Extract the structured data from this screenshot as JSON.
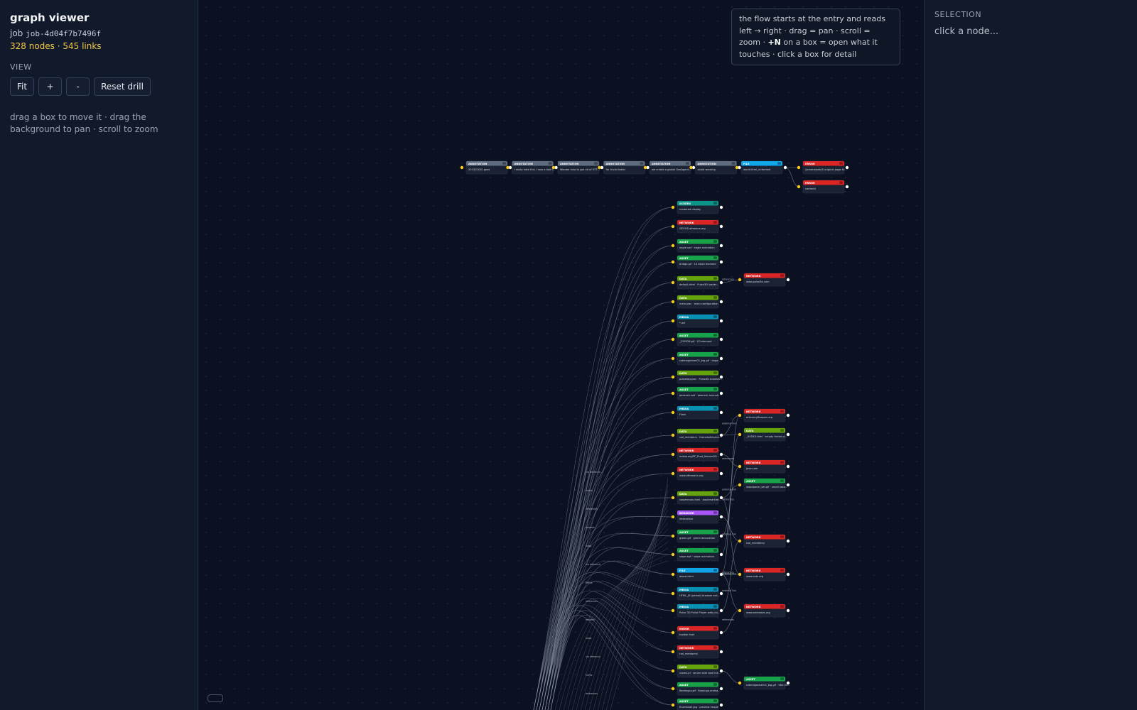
{
  "sidebar": {
    "title": "graph viewer",
    "job_prefix": "job",
    "job_id": "job-4d04f7b7496f",
    "stats": "328 nodes · 545 links",
    "view_label": "VIEW",
    "buttons": {
      "fit": "Fit",
      "zoom_in": "+",
      "zoom_out": "-",
      "reset": "Reset drill"
    },
    "hint": "drag a box to move it · drag the background to pan · scroll to zoom"
  },
  "canvas": {
    "info_text_1": "the flow starts at the entry and reads left → right · drag = pan · scroll = zoom · ",
    "info_bold": "+N",
    "info_text_2": " on a box = open what it touches · click a box for detail"
  },
  "panel": {
    "title": "SELECTION",
    "empty": "click a node..."
  },
  "colors": {
    "annotation": "#5f6b7f",
    "file": "#0ea5e9",
    "error": "#dc2626",
    "network": "#dc2626",
    "screen": "#0d9488",
    "asset": "#16a34a",
    "data": "#65a30d",
    "media": "#0891b2",
    "behavior": "#a855f7",
    "port_in": "#facc15",
    "port_out": "#ffffff",
    "edge": "#8a95a8"
  },
  "graph": {
    "top_chain": [
      {
        "kind": "annotation",
        "title": "ANNOTATION",
        "label": "2013/03/20 goes"
      },
      {
        "kind": "annotation",
        "title": "ANNOTATION",
        "label": "I really hate this. I was a bad t..."
      },
      {
        "kind": "annotation",
        "title": "ANNOTATION",
        "label": "Wonder how to get rid of HTT..."
      },
      {
        "kind": "annotation",
        "title": "ANNOTATION",
        "label": "for trivial tests!"
      },
      {
        "kind": "annotation",
        "title": "ANNOTATION",
        "label": "we create a global GeoAgent..."
      },
      {
        "kind": "annotation",
        "title": "ANNOTATION",
        "label": "avoid warning"
      },
      {
        "kind": "file",
        "title": "FILE",
        "label": "world.html_unformed"
      }
    ],
    "top_errors": [
      {
        "kind": "error",
        "title": "ERROR",
        "label": "/private/web/0 original page fo..."
      },
      {
        "kind": "error",
        "title": "ERROR",
        "label": "content/"
      }
    ],
    "column": [
      {
        "kind": "screen",
        "title": "SCREEN",
        "label": "rendered display"
      },
      {
        "kind": "network",
        "title": "NETWORK",
        "label": "GEOGS.ofmeans.org"
      },
      {
        "kind": "asset",
        "title": "ASSET",
        "label": "eagle.swf · eagle animation"
      },
      {
        "kind": "asset",
        "title": "ASSET",
        "label": "bridge.gif · 10 block element"
      },
      {
        "kind": "data",
        "title": "DATA",
        "label": "default.html · Pulse3D loader..."
      },
      {
        "kind": "data",
        "title": "DATA",
        "label": "main.pwc · main configuration"
      },
      {
        "kind": "media",
        "title": "MEDIA",
        "label": "*.wrl"
      },
      {
        "kind": "asset",
        "title": "ASSET",
        "label": "_253526.gif · 1D element"
      },
      {
        "kind": "asset",
        "title": "ASSET",
        "label": "rabmagenber01_big.gif · large..."
      },
      {
        "kind": "data",
        "title": "DATA",
        "label": "pulsebay.pwc · Pulse3D browser..."
      },
      {
        "kind": "asset",
        "title": "ASSET",
        "label": "peacock.swf · peacock animati..."
      },
      {
        "kind": "media",
        "title": "MEDIA",
        "label": "Flash"
      },
      {
        "kind": "data",
        "title": "DATA",
        "label": "rad_members · framesetlaunch..."
      },
      {
        "kind": "network",
        "title": "NETWORK",
        "label": "mdnw.org/PF_Prod_Version20..."
      },
      {
        "kind": "network",
        "title": "NETWORK",
        "label": "www.oftmeans.org"
      },
      {
        "kind": "data",
        "title": "DATA",
        "label": "castermain.html · bookmarklet..."
      },
      {
        "kind": "behavior",
        "title": "BEHAVIOR",
        "label": "interactive"
      },
      {
        "kind": "asset",
        "title": "ASSET",
        "label": "green.gif · green decoration"
      },
      {
        "kind": "asset",
        "title": "ASSET",
        "label": "slope.swf · slope animation"
      },
      {
        "kind": "file",
        "title": "FILE",
        "label": "about.html"
      },
      {
        "kind": "media",
        "title": "MEDIA",
        "label": "HTML_jD (period) browser ent..."
      },
      {
        "kind": "media",
        "title": "MEDIA",
        "label": "Pulse 3D Pulse Player web plu..."
      },
      {
        "kind": "error",
        "title": "ERROR",
        "label": "toolbar.hsst"
      },
      {
        "kind": "network",
        "title": "NETWORK",
        "label": "rad_members/"
      },
      {
        "kind": "data",
        "title": "DATA",
        "label": "rooms.pl · server side root link..."
      },
      {
        "kind": "asset",
        "title": "ASSET",
        "label": "flamingo.swf · flamingo anima..."
      },
      {
        "kind": "asset",
        "title": "ASSET",
        "label": "thumbnail.jpg · preview image"
      }
    ],
    "right_column": [
      {
        "kind": "network",
        "title": "NETWORK",
        "label": "www.pulse3d.com"
      },
      {
        "kind": "network",
        "title": "NETWORK",
        "label": "entrancyflowpen.org"
      },
      {
        "kind": "data",
        "title": "DATA",
        "label": "_XXXXX.html · empty frame pl..."
      },
      {
        "kind": "network",
        "title": "NETWORK",
        "label": "java.com"
      },
      {
        "kind": "asset",
        "title": "ASSET",
        "label": "woodpanel_set.gif · small asse..."
      },
      {
        "kind": "network",
        "title": "NETWORK",
        "label": "rad_members/"
      },
      {
        "kind": "network",
        "title": "NETWORK",
        "label": "www.rcds.org"
      },
      {
        "kind": "network",
        "title": "NETWORK",
        "label": "www.ombiases.org"
      },
      {
        "kind": "asset",
        "title": "ASSET",
        "label": "rabmagenber01_big.gif · title an..."
      }
    ],
    "edge_labels": {
      "references": "references",
      "embeds": "embeds",
      "loads": "loads",
      "external": "external link",
      "script": "via reference",
      "frame": "frame"
    }
  }
}
